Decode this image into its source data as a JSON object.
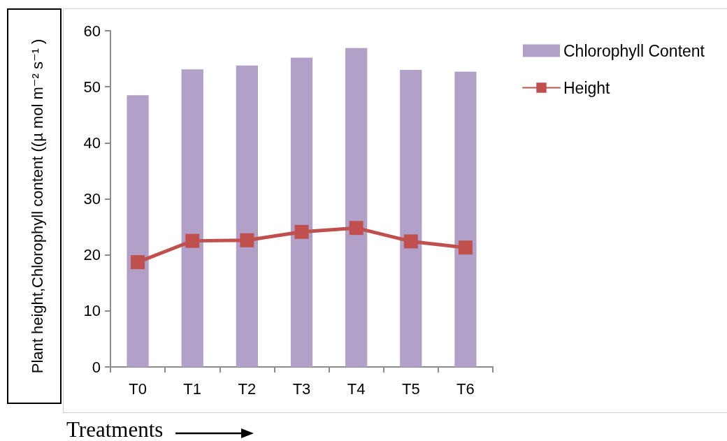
{
  "chart_data": {
    "type": "bar",
    "categories": [
      "T0",
      "T1",
      "T2",
      "T3",
      "T4",
      "T5",
      "T6"
    ],
    "series": [
      {
        "name": "Chlorophyll Content",
        "color": "#b1a0c7",
        "values": [
          48.5,
          53.1,
          53.8,
          55.2,
          56.9,
          53.0,
          52.7
        ]
      },
      {
        "name": "Height",
        "type": "line",
        "color": "#c0504d",
        "values": [
          18.7,
          22.5,
          22.6,
          24.1,
          24.8,
          22.4,
          21.3
        ]
      }
    ],
    "ylim": [
      0,
      60
    ],
    "yticks": [
      0,
      10,
      20,
      30,
      40,
      50,
      60
    ],
    "ylabel": "Plant height,Chlorophyll content ((µ mol m⁻² s⁻¹ )",
    "xlabel": "Treatments",
    "legend": "top right",
    "marker": "square",
    "line_style": "solid"
  }
}
